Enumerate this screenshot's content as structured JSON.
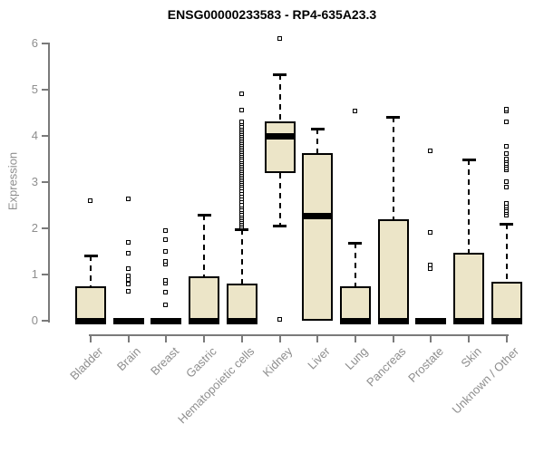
{
  "chart_data": {
    "type": "boxplot",
    "title": "ENSG00000233583 - RP4-635A23.3",
    "ylabel": "Expression",
    "ylim": [
      0,
      6
    ],
    "yticks": [
      0,
      1,
      2,
      3,
      4,
      5,
      6
    ],
    "grid": false,
    "legend": "none",
    "colors": {
      "box_fill": "#ece5c8",
      "box_stroke": "#000000",
      "median": "#000000",
      "axis": "#7a7a7a",
      "label_text": "#8e8e8e",
      "title_text": "#000000",
      "background": "#ffffff"
    },
    "marker": "open-square",
    "categories": [
      "Bladder",
      "Brain",
      "Breast",
      "Gastric",
      "Hematopoietic cells",
      "Kidney",
      "Liver",
      "Lung",
      "Pancreas",
      "Prostate",
      "Skin",
      "Unknown / Other"
    ],
    "series": [
      {
        "category": "Bladder",
        "low": 0,
        "q1": 0,
        "median": 0,
        "q3": 0.75,
        "high": 1.42,
        "outliers": [
          2.58
        ]
      },
      {
        "category": "Brain",
        "low": 0,
        "q1": 0,
        "median": 0,
        "q3": 0,
        "high": 0,
        "outliers": [
          0.63,
          0.78,
          0.88,
          0.97,
          1.12,
          1.45,
          1.69,
          2.62
        ]
      },
      {
        "category": "Breast",
        "low": 0,
        "q1": 0,
        "median": 0,
        "q3": 0,
        "high": 0,
        "outliers": [
          0.34,
          0.6,
          0.8,
          0.86,
          1.22,
          1.27,
          1.49,
          1.75,
          1.94
        ]
      },
      {
        "category": "Gastric",
        "low": 0,
        "q1": 0,
        "median": 0,
        "q3": 0.96,
        "high": 2.29,
        "outliers": []
      },
      {
        "category": "Hematopoietic cells",
        "low": 0,
        "q1": 0,
        "median": 0,
        "q3": 0.8,
        "high": 1.98,
        "outliers": [
          2.02,
          2.06,
          2.1,
          2.14,
          2.18,
          2.22,
          2.26,
          2.3,
          2.35,
          2.4,
          2.45,
          2.5,
          2.57,
          2.62,
          2.68,
          2.74,
          2.8,
          2.86,
          2.92,
          2.96,
          3.0,
          3.04,
          3.08,
          3.12,
          3.16,
          3.2,
          3.24,
          3.28,
          3.32,
          3.36,
          3.4,
          3.44,
          3.48,
          3.52,
          3.56,
          3.6,
          3.64,
          3.68,
          3.72,
          3.76,
          3.8,
          3.84,
          3.88,
          3.92,
          3.96,
          4.0,
          4.04,
          4.08,
          4.12,
          4.16,
          4.2,
          4.25,
          4.3,
          4.55,
          4.9
        ]
      },
      {
        "category": "Kidney",
        "low": 2.05,
        "q1": 3.2,
        "median": 4.0,
        "q3": 4.32,
        "high": 5.33,
        "outliers": [
          0.02,
          6.1
        ]
      },
      {
        "category": "Liver",
        "low": 0,
        "q1": 0,
        "median": 2.28,
        "q3": 3.63,
        "high": 4.15,
        "outliers": []
      },
      {
        "category": "Lung",
        "low": 0,
        "q1": 0,
        "median": 0,
        "q3": 0.74,
        "high": 1.68,
        "outliers": [
          4.53
        ]
      },
      {
        "category": "Pancreas",
        "low": 0,
        "q1": 0,
        "median": 0,
        "q3": 2.2,
        "high": 4.42,
        "outliers": []
      },
      {
        "category": "Prostate",
        "low": 0,
        "q1": 0,
        "median": 0,
        "q3": 0,
        "high": 0,
        "outliers": [
          1.12,
          1.2,
          1.9,
          3.67
        ]
      },
      {
        "category": "Skin",
        "low": 0,
        "q1": 0,
        "median": 0,
        "q3": 1.47,
        "high": 3.49,
        "outliers": []
      },
      {
        "category": "Unknown / Other",
        "low": 0,
        "q1": 0,
        "median": 0,
        "q3": 0.84,
        "high": 2.1,
        "outliers": [
          2.28,
          2.33,
          2.38,
          2.43,
          2.48,
          2.53,
          2.88,
          3.0,
          3.25,
          3.3,
          3.35,
          3.4,
          3.45,
          3.5,
          3.6,
          3.77,
          4.3,
          4.52,
          4.57
        ]
      }
    ]
  }
}
